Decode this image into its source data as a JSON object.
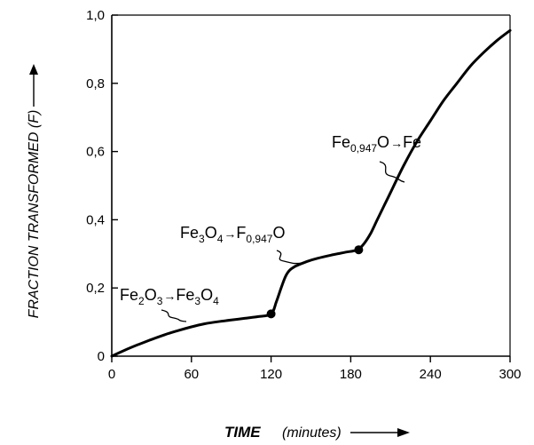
{
  "chart_data": {
    "type": "line",
    "title": "",
    "xlabel": "TIME",
    "xlabel_unit": "(minutes)",
    "ylabel": "FRACTION TRANSFORMED  (F)",
    "xlim": [
      0,
      300
    ],
    "ylim": [
      0,
      1.0
    ],
    "x_ticks": [
      0,
      60,
      120,
      180,
      240,
      300
    ],
    "x_tick_labels": [
      "0",
      "60",
      "120",
      "180",
      "240",
      "300"
    ],
    "y_ticks": [
      0,
      0.2,
      0.4,
      0.6,
      0.8,
      1.0
    ],
    "y_tick_labels": [
      "0",
      "0,2",
      "0,4",
      "0,6",
      "0,8",
      "1,0"
    ],
    "grid": false,
    "legend": "none",
    "series": [
      {
        "x": [
          0,
          10,
          20,
          30,
          40,
          50,
          60,
          70,
          80,
          90,
          100,
          110,
          120,
          124,
          128,
          131,
          134,
          138,
          142,
          148,
          155,
          165,
          175,
          185,
          190,
          195,
          200,
          205,
          210,
          220,
          230,
          240,
          250,
          260,
          270,
          280,
          290,
          300
        ],
        "y": [
          0,
          0.018,
          0.034,
          0.049,
          0.063,
          0.075,
          0.086,
          0.095,
          0.101,
          0.106,
          0.111,
          0.116,
          0.124,
          0.16,
          0.205,
          0.235,
          0.252,
          0.263,
          0.27,
          0.279,
          0.287,
          0.296,
          0.304,
          0.312,
          0.33,
          0.36,
          0.4,
          0.44,
          0.48,
          0.56,
          0.63,
          0.69,
          0.75,
          0.8,
          0.85,
          0.89,
          0.925,
          0.955
        ]
      }
    ],
    "transition_points": [
      {
        "x": 120,
        "y": 0.124
      },
      {
        "x": 186,
        "y": 0.312
      }
    ],
    "annotations": [
      {
        "id": "a1",
        "parts": [
          [
            "Fe",
            ""
          ],
          [
            "2",
            "sub"
          ],
          [
            "O",
            ""
          ],
          [
            "3",
            "sub"
          ],
          [
            "→",
            "arrow"
          ],
          [
            "Fe",
            ""
          ],
          [
            "3",
            "sub"
          ],
          [
            "O",
            ""
          ],
          [
            "4",
            "sub"
          ]
        ]
      },
      {
        "id": "a2",
        "parts": [
          [
            "Fe",
            ""
          ],
          [
            "3",
            "sub"
          ],
          [
            "O",
            ""
          ],
          [
            "4",
            "sub"
          ],
          [
            "→",
            "arrow"
          ],
          [
            "F",
            ""
          ],
          [
            "0,947",
            "sub"
          ],
          [
            "O",
            ""
          ]
        ]
      },
      {
        "id": "a3",
        "parts": [
          [
            "Fe",
            ""
          ],
          [
            "0,947",
            "sub"
          ],
          [
            "O",
            ""
          ],
          [
            "→",
            "arrow"
          ],
          [
            "Fe",
            ""
          ]
        ]
      }
    ]
  }
}
